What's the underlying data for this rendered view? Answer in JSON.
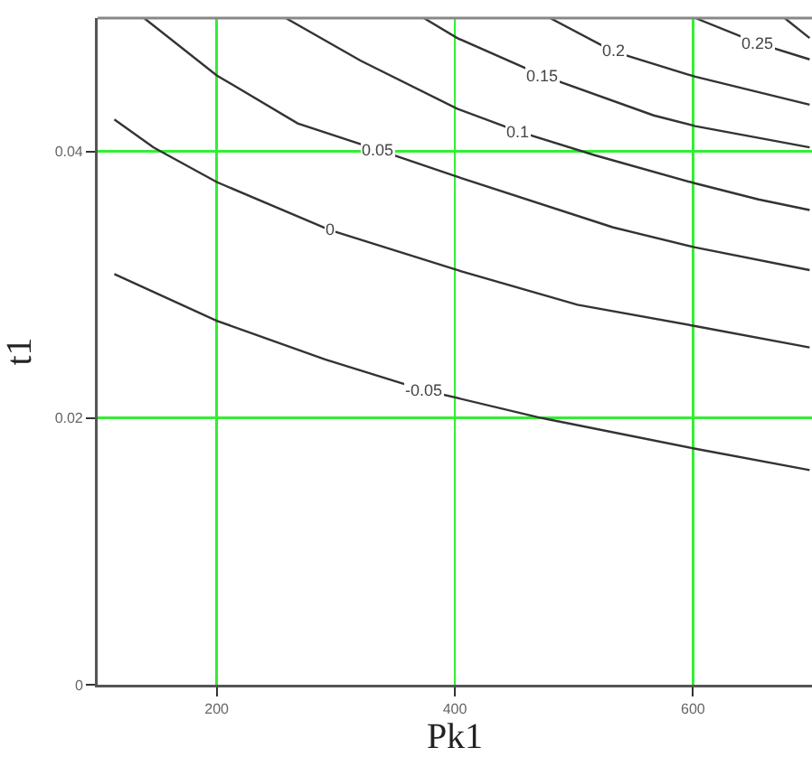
{
  "chart_data": {
    "type": "line",
    "xlabel": "Pk1",
    "ylabel": "t1",
    "xlim": [
      100,
      700
    ],
    "ylim": [
      0,
      0.05
    ],
    "xticks": [
      200,
      400,
      600
    ],
    "yticks": [
      0,
      0.02,
      0.04
    ],
    "grid": true,
    "legend": false,
    "marker": "none",
    "line_style": "solid",
    "series": [
      {
        "name": "-0.05",
        "color": "#333333",
        "x": [
          114,
          200,
          291,
          374,
          473,
          602,
          698
        ],
        "values": [
          0.0308,
          0.0273,
          0.0244,
          0.0221,
          0.02,
          0.0177,
          0.0161
        ]
      },
      {
        "name": "0",
        "color": "#333333",
        "x": [
          114,
          147,
          200,
          295,
          402,
          503,
          602,
          698
        ],
        "values": [
          0.0424,
          0.0403,
          0.0377,
          0.0341,
          0.0311,
          0.0285,
          0.0269,
          0.0253
        ]
      },
      {
        "name": "0.05",
        "color": "#333333",
        "x": [
          139,
          200,
          268,
          336,
          402,
          533,
          602,
          698
        ],
        "values": [
          0.05,
          0.0457,
          0.0421,
          0.0401,
          0.0381,
          0.0343,
          0.0328,
          0.0311
        ]
      },
      {
        "name": "0.1",
        "color": "#333333",
        "x": [
          258,
          321,
          402,
          453,
          518,
          602,
          655,
          698
        ],
        "values": [
          0.05,
          0.0468,
          0.0432,
          0.0415,
          0.0397,
          0.0376,
          0.0364,
          0.0356
        ]
      },
      {
        "name": "0.15",
        "color": "#333333",
        "x": [
          374,
          402,
          473,
          567,
          602,
          698
        ],
        "values": [
          0.05,
          0.0485,
          0.0457,
          0.0427,
          0.0419,
          0.0403
        ]
      },
      {
        "name": "0.2",
        "color": "#333333",
        "x": [
          480,
          533,
          602,
          698
        ],
        "values": [
          0.05,
          0.0475,
          0.0456,
          0.0435
        ]
      },
      {
        "name": "0.25",
        "color": "#333333",
        "x": [
          602,
          655,
          698
        ],
        "values": [
          0.05,
          0.0481,
          0.0469
        ]
      },
      {
        "color": "#333333",
        "x": [
          677,
          698
        ],
        "values": [
          0.05,
          0.0485
        ]
      }
    ]
  }
}
